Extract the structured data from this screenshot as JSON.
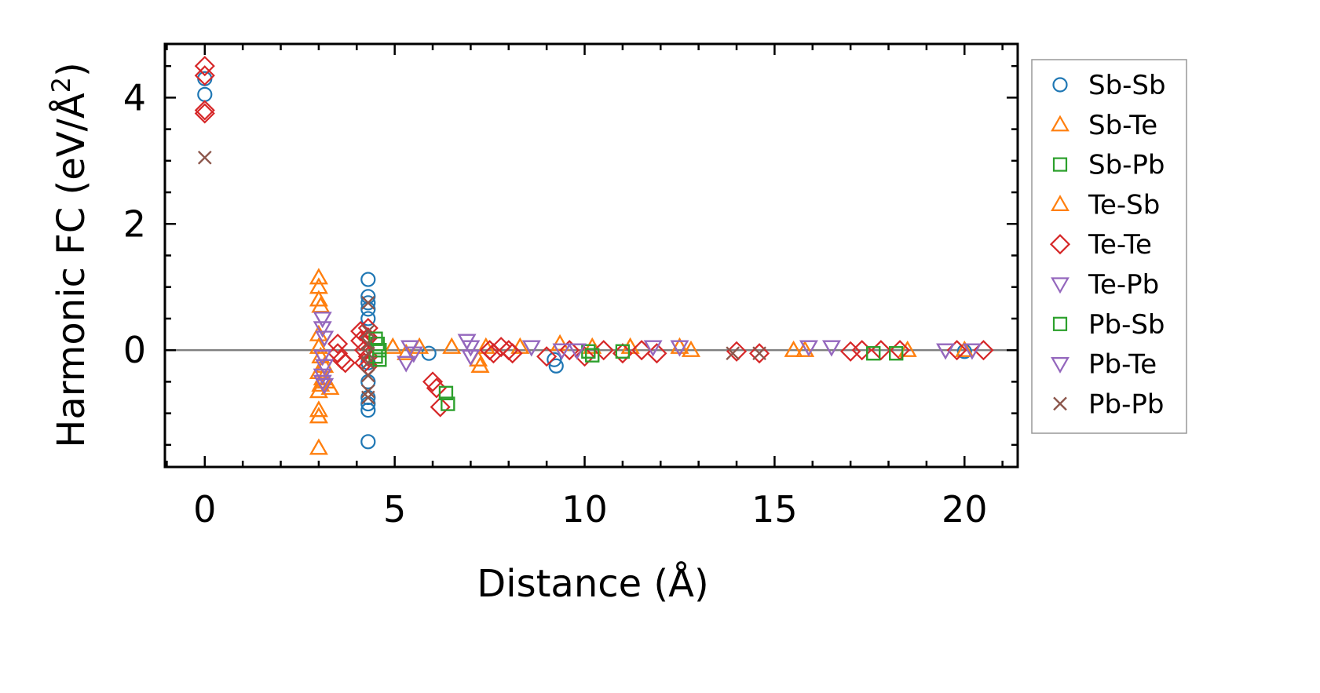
{
  "chart_data": {
    "type": "scatter",
    "title": "",
    "xlabel": "Distance (Å)",
    "ylabel_main": "Harmonic FC (eV/Å",
    "ylabel_sup": "2",
    "ylabel_close": ")",
    "xlim": [
      -1.05,
      21.4
    ],
    "ylim": [
      -1.85,
      4.85
    ],
    "xticks": [
      0,
      5,
      10,
      15,
      20
    ],
    "yticks": [
      0,
      2,
      4
    ],
    "xtick_labels": [
      "0",
      "5",
      "10",
      "15",
      "20"
    ],
    "ytick_labels": [
      "0",
      "2",
      "4"
    ],
    "x_minor_step": 1,
    "y_minor_step": 0.5,
    "zero_line": true,
    "grid": false,
    "legend_position": "outside-right",
    "series": [
      {
        "name": "Sb-Sb",
        "marker": "circle",
        "color": "#1f77b4",
        "x": [
          0,
          0,
          4.3,
          4.3,
          4.3,
          4.3,
          4.3,
          4.3,
          4.3,
          4.3,
          4.3,
          4.3,
          4.3,
          4.3,
          5.9,
          9.2,
          9.25,
          20.0
        ],
        "y": [
          4.05,
          4.3,
          1.12,
          0.85,
          0.75,
          0.65,
          0.5,
          0.2,
          -0.2,
          -0.5,
          -0.75,
          -0.85,
          -0.95,
          -1.45,
          -0.05,
          -0.15,
          -0.25,
          -0.02
        ]
      },
      {
        "name": "Sb-Te",
        "marker": "triangle-up",
        "color": "#ff7f0e",
        "x": [
          3.0,
          3.0,
          3.0,
          3.05,
          3.0,
          3.0,
          3.05,
          3.0,
          3.1,
          3.05,
          3.0,
          3.0,
          3.0,
          3.0,
          3.15,
          3.2,
          3.3,
          4.95,
          5.3,
          5.65,
          6.5,
          7.2,
          7.25,
          7.4,
          8.3,
          9.35,
          10.2,
          11.2,
          12.5,
          12.8,
          15.5,
          15.8,
          18.5,
          20.0
        ],
        "y": [
          1.15,
          1.0,
          0.8,
          0.7,
          0.25,
          0.05,
          -0.1,
          -0.35,
          -0.45,
          -0.55,
          -0.65,
          -0.95,
          -1.05,
          -1.55,
          -0.25,
          -0.5,
          -0.6,
          0.05,
          -0.05,
          0.05,
          0.05,
          -0.15,
          -0.25,
          0.05,
          0.05,
          0.1,
          0.05,
          0.05,
          0.05,
          0.0,
          0.0,
          0.0,
          0.0,
          0.0
        ]
      },
      {
        "name": "Sb-Pb",
        "marker": "square",
        "color": "#2ca02c",
        "x": [
          4.5,
          4.55,
          4.6,
          4.5,
          4.6,
          6.35,
          6.4,
          10.1,
          10.2,
          11.0,
          17.6,
          18.2
        ],
        "y": [
          0.18,
          0.1,
          0.0,
          -0.1,
          -0.15,
          -0.68,
          -0.85,
          -0.02,
          -0.08,
          -0.02,
          -0.05,
          -0.05
        ]
      },
      {
        "name": "Te-Sb",
        "marker": "triangle-up",
        "color": "#ff7f0e",
        "x": [
          3.0,
          3.0,
          3.0,
          3.05,
          3.0,
          3.0,
          3.05,
          3.0,
          3.1,
          3.05,
          3.0,
          3.0,
          3.0,
          3.0,
          3.15,
          3.2,
          3.3,
          4.95,
          5.3,
          5.65,
          6.5,
          7.2,
          7.25,
          7.4,
          8.3,
          9.35,
          10.2,
          11.2,
          12.5,
          12.8,
          15.5,
          15.8,
          18.5,
          20.0
        ],
        "y": [
          1.15,
          1.0,
          0.8,
          0.7,
          0.25,
          0.05,
          -0.1,
          -0.35,
          -0.45,
          -0.55,
          -0.65,
          -0.95,
          -1.05,
          -1.55,
          -0.25,
          -0.5,
          -0.6,
          0.05,
          -0.05,
          0.05,
          0.05,
          -0.15,
          -0.25,
          0.05,
          0.05,
          0.1,
          0.05,
          0.05,
          0.05,
          0.0,
          0.0,
          0.0,
          0.0,
          0.0
        ]
      },
      {
        "name": "Te-Te",
        "marker": "diamond",
        "color": "#d62728",
        "x": [
          0,
          0,
          0,
          0,
          3.5,
          3.5,
          3.6,
          3.7,
          4.1,
          4.1,
          4.2,
          4.2,
          4.3,
          4.3,
          4.3,
          4.3,
          6.0,
          6.1,
          6.2,
          7.5,
          7.6,
          7.8,
          8.0,
          8.1,
          9.0,
          9.6,
          10.0,
          10.5,
          11.0,
          11.5,
          11.9,
          14.0,
          14.6,
          17.0,
          17.3,
          17.8,
          18.3,
          19.8,
          20.5
        ],
        "y": [
          4.5,
          4.35,
          3.8,
          3.75,
          0.1,
          -0.05,
          -0.15,
          -0.2,
          0.3,
          0.15,
          0.0,
          -0.2,
          0.35,
          0.2,
          -0.1,
          -0.25,
          -0.5,
          -0.6,
          -0.9,
          0.0,
          -0.05,
          0.05,
          0.0,
          -0.05,
          -0.1,
          0.0,
          -0.1,
          0.0,
          -0.05,
          0.0,
          -0.05,
          -0.02,
          -0.05,
          -0.02,
          0.0,
          0.0,
          0.0,
          0.0,
          0.0
        ]
      },
      {
        "name": "Te-Pb",
        "marker": "triangle-down",
        "color": "#9467bd",
        "x": [
          3.1,
          3.1,
          3.15,
          3.1,
          3.15,
          3.1,
          3.1,
          3.15,
          5.3,
          5.4,
          5.5,
          6.9,
          7.0,
          7.0,
          8.6,
          9.4,
          9.8,
          11.8,
          12.5,
          15.9,
          16.5,
          19.5,
          20.2
        ],
        "y": [
          0.5,
          0.35,
          0.2,
          -0.1,
          -0.25,
          -0.4,
          -0.5,
          -0.55,
          -0.2,
          0.05,
          -0.05,
          0.15,
          0.05,
          -0.1,
          0.05,
          0.0,
          0.0,
          0.05,
          0.05,
          0.05,
          0.05,
          0.0,
          0.0
        ]
      },
      {
        "name": "Pb-Sb",
        "marker": "square",
        "color": "#2ca02c",
        "x": [
          4.5,
          4.55,
          4.6,
          4.5,
          4.6,
          6.35,
          6.4,
          10.1,
          10.2,
          11.0,
          17.6,
          18.2
        ],
        "y": [
          0.18,
          0.1,
          0.0,
          -0.1,
          -0.15,
          -0.68,
          -0.85,
          -0.02,
          -0.08,
          -0.02,
          -0.05,
          -0.05
        ]
      },
      {
        "name": "Pb-Te",
        "marker": "triangle-down",
        "color": "#9467bd",
        "x": [
          3.1,
          3.1,
          3.15,
          3.1,
          3.15,
          3.1,
          3.1,
          3.15,
          5.3,
          5.4,
          5.5,
          6.9,
          7.0,
          7.0,
          8.6,
          9.4,
          9.8,
          11.8,
          12.5,
          15.9,
          16.5,
          19.5,
          20.2
        ],
        "y": [
          0.5,
          0.35,
          0.2,
          -0.1,
          -0.25,
          -0.4,
          -0.5,
          -0.55,
          -0.2,
          0.05,
          -0.05,
          0.15,
          0.05,
          -0.1,
          0.05,
          0.0,
          0.0,
          0.05,
          0.05,
          0.05,
          0.05,
          0.0,
          0.0
        ]
      },
      {
        "name": "Pb-Pb",
        "marker": "x",
        "color": "#8c564b",
        "x": [
          0,
          4.3,
          4.3,
          4.3,
          4.3,
          4.3,
          4.3,
          4.3,
          4.3,
          13.9,
          14.6
        ],
        "y": [
          3.05,
          0.75,
          0.3,
          0.1,
          -0.05,
          -0.2,
          -0.4,
          -0.65,
          -0.75,
          -0.05,
          -0.05
        ]
      }
    ]
  }
}
